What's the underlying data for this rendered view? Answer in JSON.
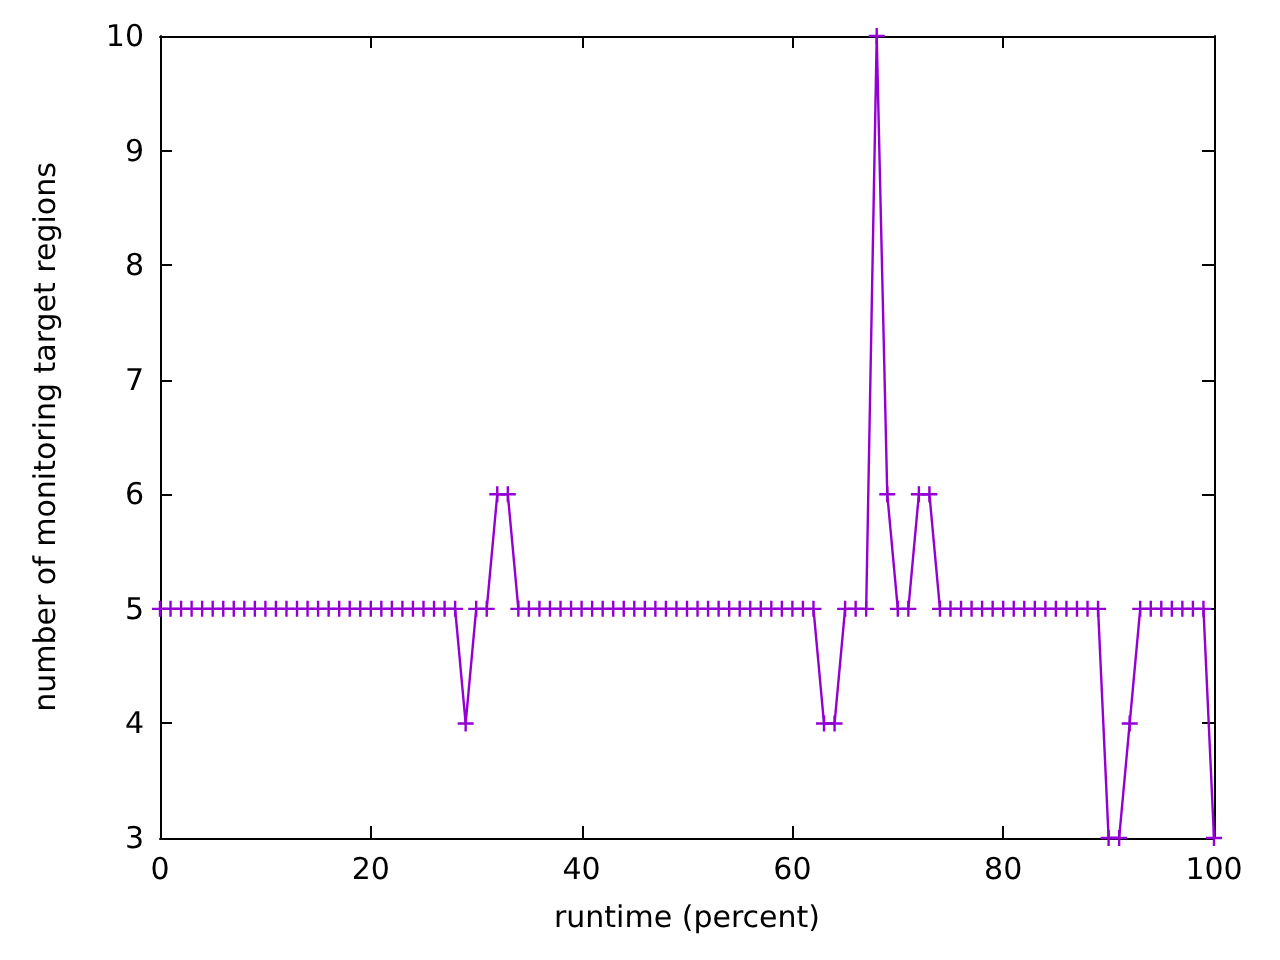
{
  "chart_data": {
    "type": "line",
    "xlabel": "runtime (percent)",
    "ylabel": "number of monitoring target regions",
    "x": [
      0,
      1,
      2,
      3,
      4,
      5,
      6,
      7,
      8,
      9,
      10,
      11,
      12,
      13,
      14,
      15,
      16,
      17,
      18,
      19,
      20,
      21,
      22,
      23,
      24,
      25,
      26,
      27,
      28,
      29,
      30,
      31,
      32,
      33,
      34,
      35,
      36,
      37,
      38,
      39,
      40,
      41,
      42,
      43,
      44,
      45,
      46,
      47,
      48,
      49,
      50,
      51,
      52,
      53,
      54,
      55,
      56,
      57,
      58,
      59,
      60,
      61,
      62,
      63,
      64,
      65,
      66,
      67,
      68,
      69,
      70,
      71,
      72,
      73,
      74,
      75,
      76,
      77,
      78,
      79,
      80,
      81,
      82,
      83,
      84,
      85,
      86,
      87,
      88,
      89,
      90,
      91,
      92,
      93,
      94,
      95,
      96,
      97,
      98,
      99,
      100
    ],
    "series": [
      {
        "color": "#9400d3",
        "values": [
          5,
          5,
          5,
          5,
          5,
          5,
          5,
          5,
          5,
          5,
          5,
          5,
          5,
          5,
          5,
          5,
          5,
          5,
          5,
          5,
          5,
          5,
          5,
          5,
          5,
          5,
          5,
          5,
          5,
          4,
          5,
          5,
          6,
          6,
          5,
          5,
          5,
          5,
          5,
          5,
          5,
          5,
          5,
          5,
          5,
          5,
          5,
          5,
          5,
          5,
          5,
          5,
          5,
          5,
          5,
          5,
          5,
          5,
          5,
          5,
          5,
          5,
          5,
          4,
          4,
          5,
          5,
          5,
          10,
          6,
          5,
          5,
          6,
          6,
          5,
          5,
          5,
          5,
          5,
          5,
          5,
          5,
          5,
          5,
          5,
          5,
          5,
          5,
          5,
          5,
          3,
          3,
          4,
          5,
          5,
          5,
          5,
          5,
          5,
          5,
          3
        ]
      }
    ],
    "xlim": [
      0,
      100
    ],
    "xticks": [
      0,
      20,
      40,
      60,
      80,
      100
    ],
    "ylim": [
      3,
      10
    ],
    "yticks": [
      3,
      4,
      5,
      6,
      7,
      8,
      9,
      10
    ],
    "grid": false,
    "marker": "cross",
    "line_style": "solid"
  }
}
